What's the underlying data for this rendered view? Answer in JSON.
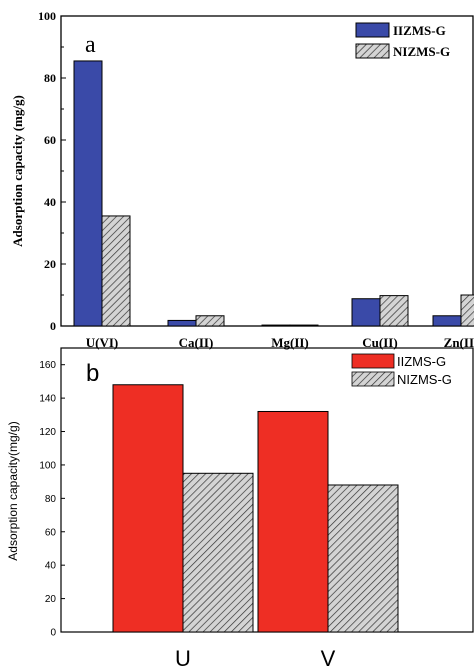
{
  "colors": {
    "iizms_a": "#3a4aa8",
    "iizms_b": "#ee2e24",
    "nizms_fill": "#cfcfcf",
    "axis": "#000000"
  },
  "chart_data": [
    {
      "type": "bar",
      "panel_label": "a",
      "title": "",
      "xlabel": "",
      "ylabel": "Adsorption capacity (mg/g)",
      "ylim": [
        0,
        100
      ],
      "yticks": [
        0,
        20,
        40,
        60,
        80,
        100
      ],
      "grid": false,
      "legend_position": "top-right",
      "categories": [
        "U(VI)",
        "Ca(II)",
        "Mg(II)",
        "Cu(II)",
        "Zn(II)"
      ],
      "series": [
        {
          "name": "IIZMS-G",
          "values": [
            85.5,
            1.8,
            0.3,
            8.8,
            3.3
          ]
        },
        {
          "name": "NIZMS-G",
          "values": [
            35.5,
            3.3,
            0.3,
            9.8,
            10.0
          ]
        }
      ]
    },
    {
      "type": "bar",
      "panel_label": "b",
      "title": "",
      "xlabel": "",
      "ylabel": "Adsorption capacity(mg/g)",
      "ylim": [
        0,
        170
      ],
      "yticks": [
        0,
        20,
        40,
        60,
        80,
        100,
        120,
        140,
        160
      ],
      "grid": false,
      "legend_position": "top-right",
      "categories": [
        "U",
        "V"
      ],
      "series": [
        {
          "name": "IIZMS-G",
          "values": [
            148,
            132
          ]
        },
        {
          "name": "NIZMS-G",
          "values": [
            95,
            88
          ]
        }
      ]
    }
  ]
}
